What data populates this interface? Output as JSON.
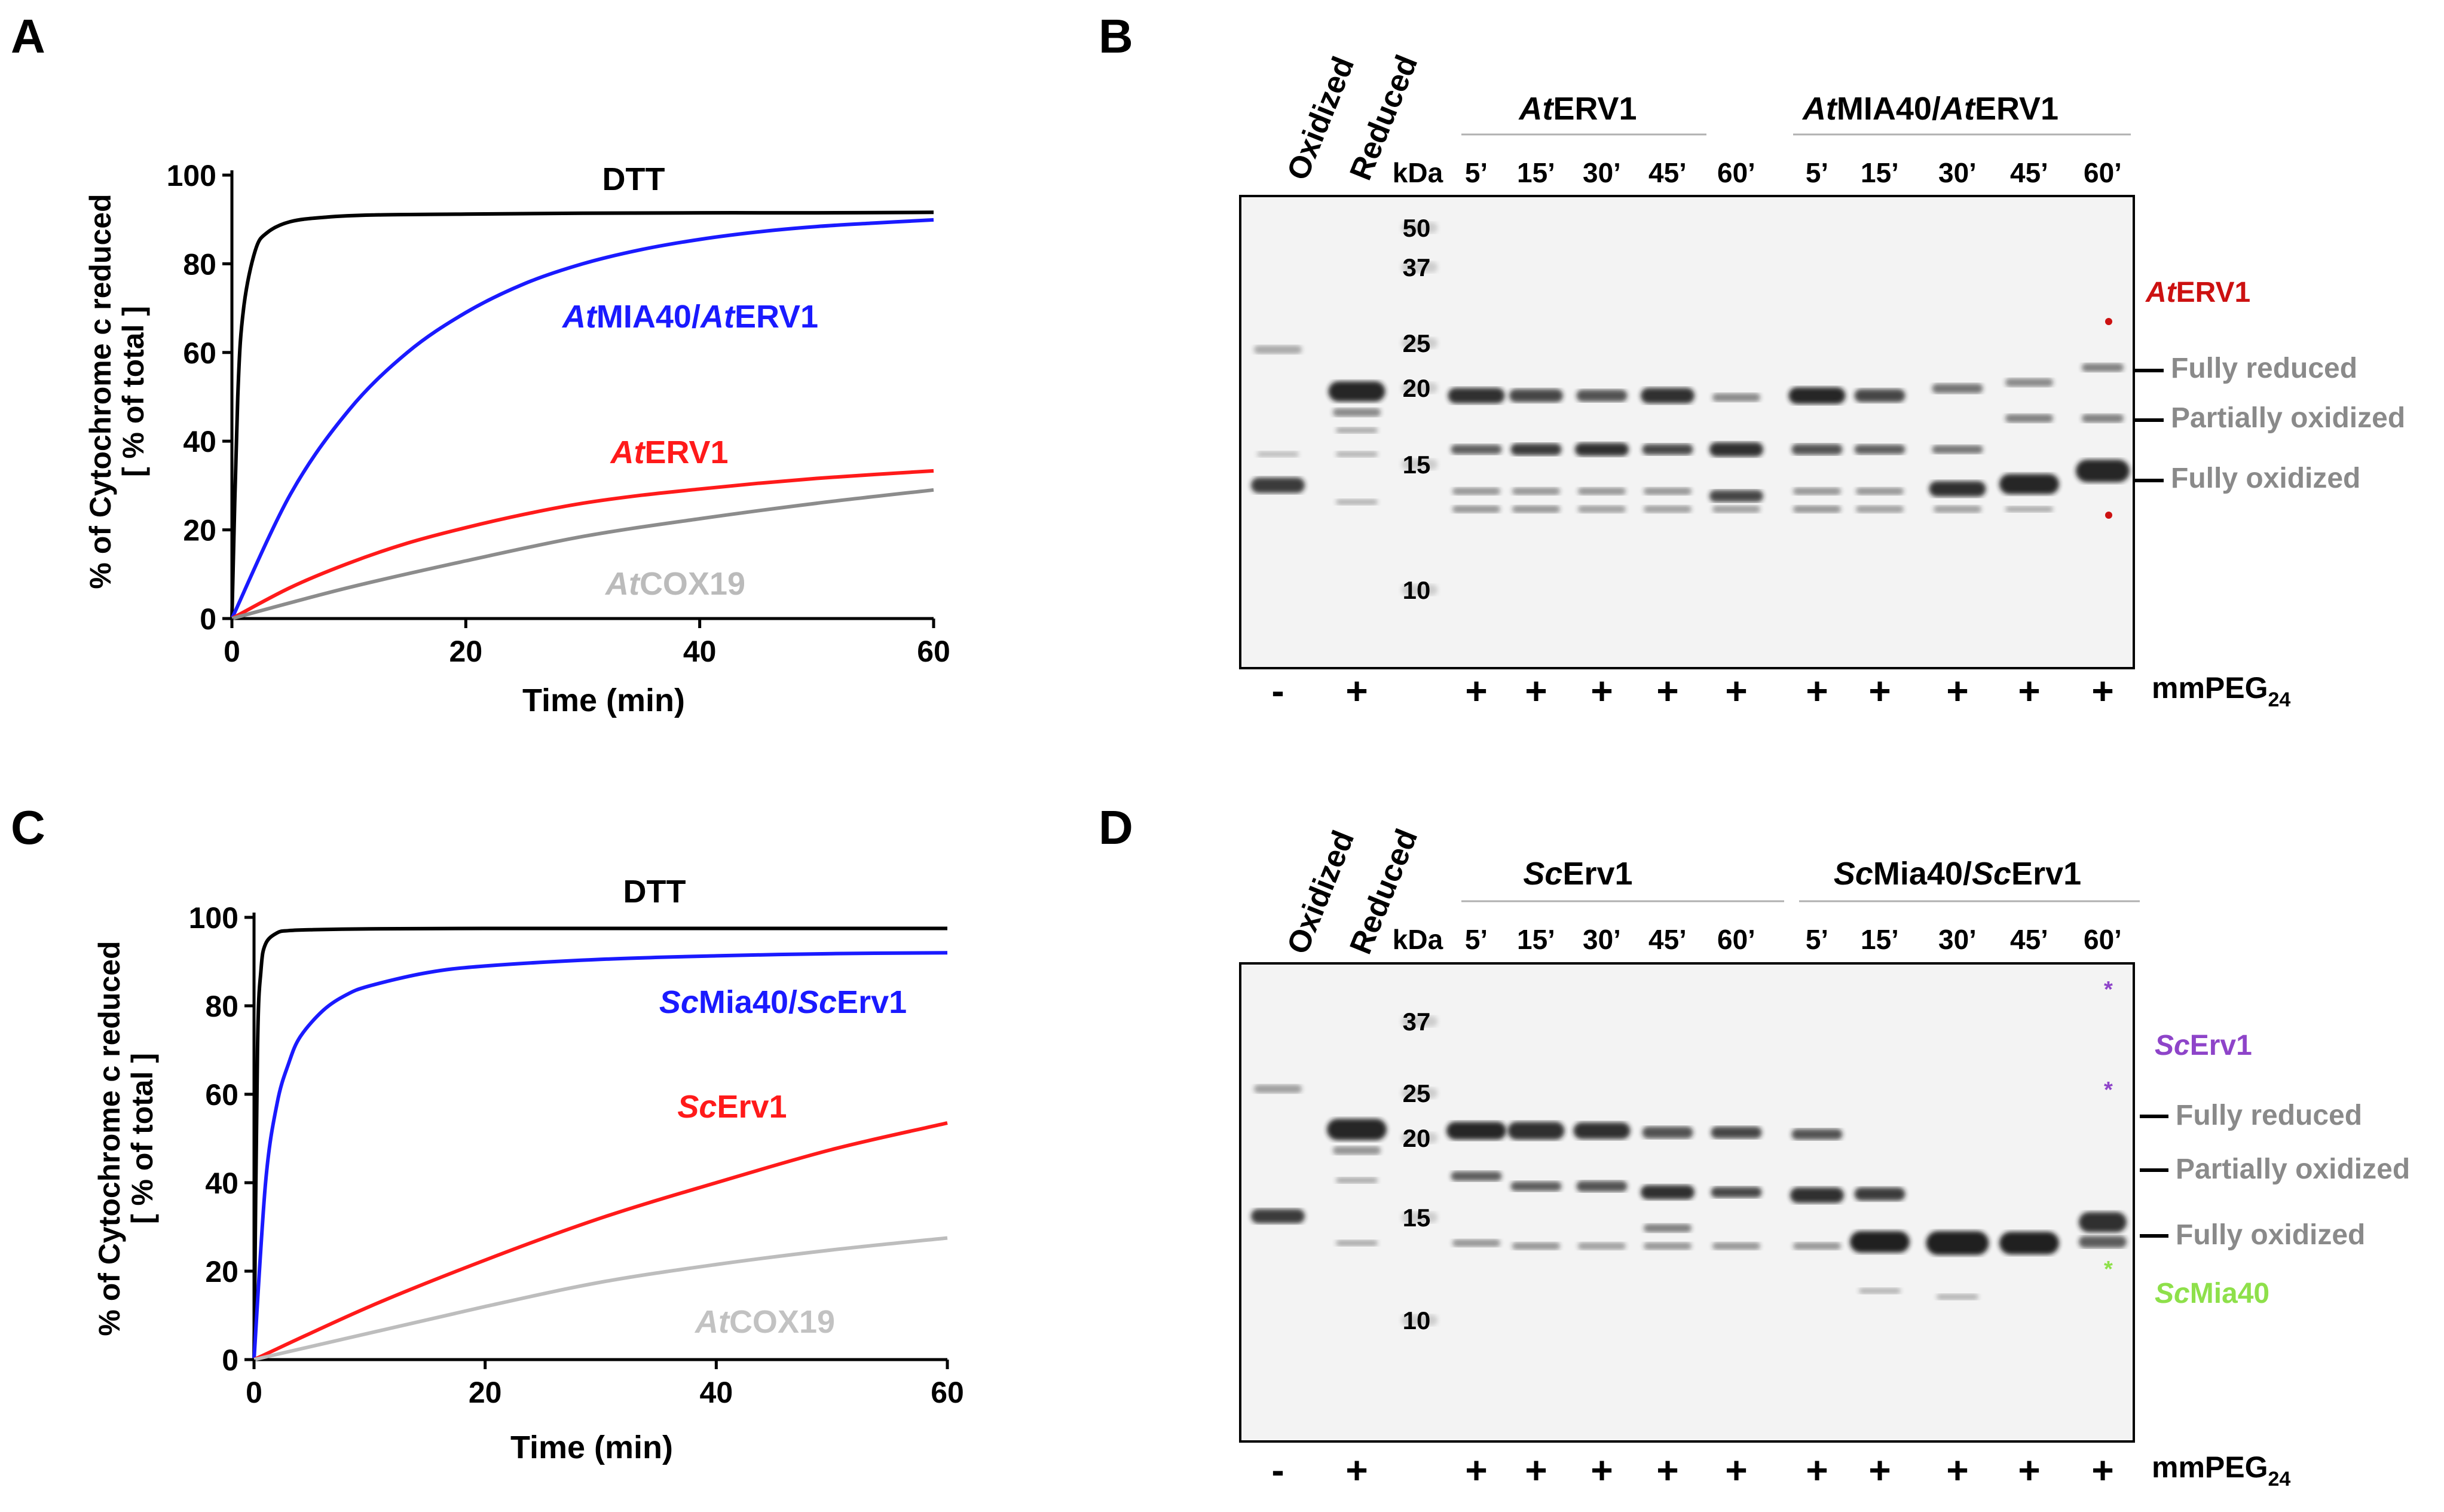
{
  "panel_letters": {
    "A": "A",
    "B": "B",
    "C": "C",
    "D": "D"
  },
  "colors": {
    "dtt": "#000000",
    "mia_erv": "#1a1aff",
    "erv": "#ff1a1a",
    "cox19_a": "#8c8c8c",
    "cox19_c": "#bdbdbd",
    "band_label": "#8a8a8a",
    "sc_erv1_label": "#8e44c9",
    "sc_mia40_label": "#8ee04a",
    "at_erv1_label": "#cc1111"
  },
  "chart_data": [
    {
      "panel": "A",
      "type": "line",
      "title": "",
      "xlabel": "Time (min)",
      "ylabel_line1": "% of Cytochrome c reduced",
      "ylabel_line2": "[ % of total ]",
      "xlim": [
        0,
        60
      ],
      "ylim": [
        0,
        100
      ],
      "xticks": [
        "0",
        "20",
        "40",
        "60"
      ],
      "yticks": [
        "0",
        "20",
        "40",
        "60",
        "80",
        "100"
      ],
      "series": [
        {
          "name": "DTT",
          "label_prefix": "",
          "label_mid": "DTT",
          "label_rest": "",
          "color": "#000000",
          "x": [
            0,
            0.5,
            1,
            2,
            3,
            5,
            8,
            12,
            20,
            30,
            40,
            50,
            60
          ],
          "values": [
            0,
            50,
            70,
            83,
            87,
            89.5,
            90.5,
            91,
            91.2,
            91.4,
            91.5,
            91.5,
            91.6
          ]
        },
        {
          "name": "AtMIA40/AtERV1",
          "label_prefix": "At",
          "label_mid": "MIA40/",
          "label_prefix2": "At",
          "label_rest": "ERV1",
          "color": "#1a1aff",
          "x": [
            0,
            5,
            10,
            15,
            20,
            25,
            30,
            35,
            40,
            45,
            50,
            55,
            60
          ],
          "values": [
            0,
            28,
            47,
            60,
            69,
            75.5,
            80,
            83.2,
            85.5,
            87.2,
            88.4,
            89.2,
            89.9
          ]
        },
        {
          "name": "AtERV1",
          "label_prefix": "At",
          "label_mid": "ERV1",
          "label_rest": "",
          "color": "#ff1a1a",
          "x": [
            0,
            5,
            10,
            15,
            20,
            25,
            30,
            35,
            40,
            45,
            50,
            55,
            60
          ],
          "values": [
            0,
            7,
            12.5,
            17,
            20.5,
            23.5,
            26,
            27.8,
            29.2,
            30.5,
            31.6,
            32.5,
            33.3
          ]
        },
        {
          "name": "AtCOX19",
          "label_prefix": "At",
          "label_mid": "COX19",
          "label_rest": "",
          "color": "#8c8c8c",
          "x": [
            0,
            10,
            20,
            30,
            40,
            50,
            60
          ],
          "values": [
            0,
            7,
            13,
            18.5,
            22.5,
            26,
            29
          ]
        }
      ]
    },
    {
      "panel": "C",
      "type": "line",
      "title": "",
      "xlabel": "Time (min)",
      "ylabel_line1": "% of Cytochrome c reduced",
      "ylabel_line2": "[ % of total ]",
      "xlim": [
        0,
        60
      ],
      "ylim": [
        0,
        100
      ],
      "xticks": [
        "0",
        "20",
        "40",
        "60"
      ],
      "yticks": [
        "0",
        "20",
        "40",
        "60",
        "80",
        "100"
      ],
      "series": [
        {
          "name": "DTT",
          "label_prefix": "",
          "label_mid": "DTT",
          "label_rest": "",
          "color": "#000000",
          "x": [
            0,
            0.3,
            0.6,
            1,
            2,
            3,
            5,
            10,
            20,
            40,
            60
          ],
          "values": [
            0,
            70,
            88,
            94,
            96.5,
            97,
            97.2,
            97.4,
            97.5,
            97.5,
            97.5
          ]
        },
        {
          "name": "ScMia40/ScErv1",
          "label_prefix": "Sc",
          "label_mid": "Mia40/",
          "label_prefix2": "Sc",
          "label_rest": "Erv1",
          "color": "#1a1aff",
          "x": [
            0,
            1,
            2,
            3,
            4,
            6,
            8,
            10,
            15,
            20,
            30,
            40,
            50,
            60
          ],
          "values": [
            0,
            40,
            58,
            67,
            73,
            79,
            82.5,
            84.5,
            87.5,
            89,
            90.5,
            91.3,
            91.8,
            92
          ]
        },
        {
          "name": "ScErv1",
          "label_prefix": "Sc",
          "label_mid": "Erv1",
          "label_rest": "",
          "color": "#ff1a1a",
          "x": [
            0,
            10,
            20,
            30,
            40,
            50,
            60
          ],
          "values": [
            0,
            12,
            22.5,
            32,
            40,
            47.5,
            53.5
          ]
        },
        {
          "name": "AtCOX19",
          "label_prefix": "At",
          "label_mid": "COX19",
          "label_rest": "",
          "color": "#bdbdbd",
          "x": [
            0,
            10,
            20,
            30,
            40,
            50,
            60
          ],
          "values": [
            0,
            6,
            12,
            17.5,
            21.5,
            24.8,
            27.5
          ]
        }
      ]
    }
  ],
  "gel_B": {
    "lane_headers": {
      "oxidized": "Oxidized",
      "reduced": "Reduced"
    },
    "group1": {
      "prefix": "At",
      "rest": "ERV1"
    },
    "group2": {
      "prefix1": "At",
      "mid": "MIA40/",
      "prefix2": "At",
      "rest": "ERV1"
    },
    "kda": "kDa",
    "times": [
      "5’",
      "15’",
      "30’",
      "45’",
      "60’",
      "5’",
      "15’",
      "30’",
      "45’",
      "60’"
    ],
    "markers": [
      "50",
      "37",
      "25",
      "20",
      "15",
      "10"
    ],
    "peg_signs": [
      "-",
      "+",
      "+",
      "+",
      "+",
      "+",
      "+",
      "+",
      "+",
      "+",
      "+",
      "+"
    ],
    "peg_label": "mmPEG",
    "peg_sub": "24",
    "side_labels": {
      "enzyme_prefix": "At",
      "enzyme_rest": "ERV1",
      "fully_reduced": "Fully reduced",
      "partially_oxidized": "Partially oxidized",
      "fully_oxidized": "Fully oxidized"
    }
  },
  "gel_D": {
    "lane_headers": {
      "oxidized": "Oxidized",
      "reduced": "Reduced"
    },
    "group1": {
      "prefix": "Sc",
      "rest": "Erv1"
    },
    "group2": {
      "prefix1": "Sc",
      "mid": "Mia40/",
      "prefix2": "Sc",
      "rest": "Erv1"
    },
    "kda": "kDa",
    "times": [
      "5’",
      "15’",
      "30’",
      "45’",
      "60’",
      "5’",
      "15’",
      "30’",
      "45’",
      "60’"
    ],
    "markers": [
      "37",
      "25",
      "20",
      "15",
      "10"
    ],
    "peg_signs": [
      "-",
      "+",
      "+",
      "+",
      "+",
      "+",
      "+",
      "+",
      "+",
      "+",
      "+",
      "+"
    ],
    "peg_label": "mmPEG",
    "peg_sub": "24",
    "side_labels": {
      "erv_prefix": "Sc",
      "erv_rest": "Erv1",
      "fully_reduced": "Fully reduced",
      "partially_oxidized": "Partially oxidized",
      "fully_oxidized": "Fully oxidized",
      "mia_prefix": "Sc",
      "mia_rest": "Mia40"
    }
  }
}
